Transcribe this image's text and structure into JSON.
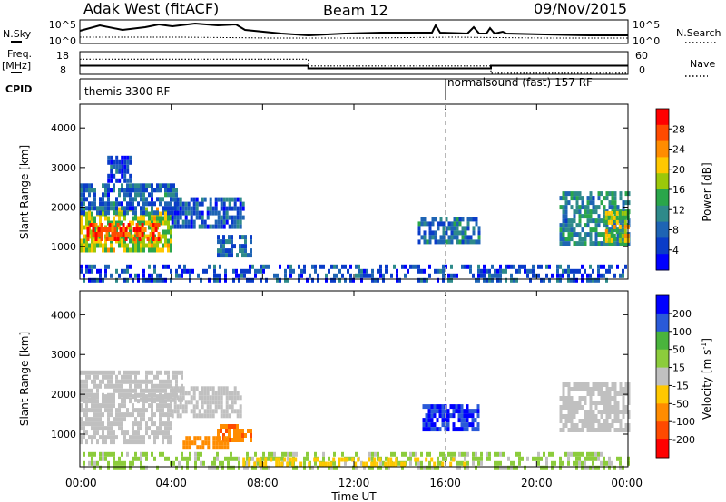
{
  "header": {
    "station": "Adak West (fitACF)",
    "beam": "Beam 12",
    "date": "09/Nov/2015"
  },
  "side_labels": {
    "nsky": "N.Sky",
    "nsearch": "N.Search",
    "freq": "Freq.",
    "freq_unit": "[MHz]",
    "nave": "Nave",
    "cpid": "CPID"
  },
  "top_panels": {
    "noise_ticks_left": [
      "10^5",
      "10^0"
    ],
    "noise_ticks_right": [
      "10^5",
      "10^0"
    ],
    "freq_ticks_left": [
      "18",
      "8"
    ],
    "nave_ticks_right": [
      "60",
      "0"
    ],
    "freq_mhz": [
      {
        "x": 0,
        "v": 11.8
      },
      {
        "x": 10,
        "v": 11.8
      },
      {
        "x": 10,
        "v": 10.6
      },
      {
        "x": 18,
        "v": 10.6
      },
      {
        "x": 18,
        "v": 11.8
      },
      {
        "x": 24,
        "v": 11.8
      }
    ],
    "nave": [
      {
        "x": 0,
        "v": 40
      },
      {
        "x": 10,
        "v": 40
      },
      {
        "x": 10,
        "v": 22
      },
      {
        "x": 18,
        "v": 22
      },
      {
        "x": 18,
        "v": 3
      },
      {
        "x": 24,
        "v": 3
      }
    ],
    "cpid": [
      {
        "label": "themis 3300 RF",
        "start": 0,
        "end": 16
      },
      {
        "label": "normalsound (fast) 157 RF",
        "start": 16,
        "end": 24
      }
    ]
  },
  "chart_data": [
    {
      "type": "heatmap",
      "name": "Power",
      "ylabel": "Slant Range [km]",
      "xlabel": "Time UT",
      "x_unit": "hours UT",
      "xlim": [
        0,
        24
      ],
      "ylim": [
        180,
        4600
      ],
      "yticks": [
        "1000",
        "2000",
        "3000",
        "4000"
      ],
      "colorbar": {
        "label": "Power [dB]",
        "ticks": [
          "28",
          "24",
          "20",
          "16",
          "12",
          "8",
          "4"
        ],
        "colors": [
          "#ff0000",
          "#ff4a00",
          "#ff8c00",
          "#ffc800",
          "#9cc80a",
          "#2aa64a",
          "#2e8a8a",
          "#1e64b4",
          "#0a3cc8",
          "#0000ff"
        ]
      },
      "regions": [
        {
          "t0": 0.0,
          "t1": 4.0,
          "r0": 900,
          "r1": 2000,
          "value": 18
        },
        {
          "t0": 0.3,
          "t1": 3.5,
          "r0": 1150,
          "r1": 1600,
          "value": 28
        },
        {
          "t0": 0.0,
          "t1": 4.2,
          "r0": 1900,
          "r1": 2600,
          "value": 8
        },
        {
          "t0": 1.2,
          "t1": 2.2,
          "r0": 2700,
          "r1": 3300,
          "value": 5
        },
        {
          "t0": 4.0,
          "t1": 7.2,
          "r0": 1450,
          "r1": 2250,
          "value": 7
        },
        {
          "t0": 6.0,
          "t1": 7.5,
          "r0": 800,
          "r1": 1300,
          "value": 8
        },
        {
          "t0": 14.8,
          "t1": 17.5,
          "r0": 1100,
          "r1": 1750,
          "value": 9
        },
        {
          "t0": 21.0,
          "t1": 24.0,
          "r0": 1100,
          "r1": 2400,
          "value": 11
        },
        {
          "t0": 23.0,
          "t1": 24.0,
          "r0": 1200,
          "r1": 1900,
          "value": 18
        },
        {
          "t0": 0.0,
          "t1": 24.0,
          "r0": 200,
          "r1": 550,
          "value": 6
        }
      ]
    },
    {
      "type": "heatmap",
      "name": "Velocity",
      "ylabel": "Slant Range [km]",
      "xlabel": "Time UT",
      "x_unit": "hours UT",
      "xlim": [
        0,
        24
      ],
      "ylim": [
        180,
        4600
      ],
      "yticks": [
        "1000",
        "2000",
        "3000",
        "4000"
      ],
      "xticks": [
        "00:00",
        "04:00",
        "08:00",
        "12:00",
        "16:00",
        "20:00",
        "00:00"
      ],
      "colorbar": {
        "label": "Velocity [m s",
        "label_sup": "-1",
        "label_end": "]",
        "ticks": [
          "200",
          "100",
          "50",
          "15",
          "-15",
          "-50",
          "-100",
          "-200"
        ],
        "colors": [
          "#0000ff",
          "#2a5ad8",
          "#4ab43c",
          "#8ccc3c",
          "#c0c0c0",
          "#ffc800",
          "#ff8c00",
          "#ff4a00",
          "#ff0000"
        ]
      },
      "regions": [
        {
          "t0": 0.0,
          "t1": 4.0,
          "r0": 800,
          "r1": 2000,
          "value": 0
        },
        {
          "t0": 0.0,
          "t1": 4.5,
          "r0": 1900,
          "r1": 2600,
          "value": 5
        },
        {
          "t0": 4.0,
          "t1": 7.0,
          "r0": 1500,
          "r1": 2200,
          "value": -5
        },
        {
          "t0": 6.0,
          "t1": 7.5,
          "r0": 850,
          "r1": 1250,
          "value": -90
        },
        {
          "t0": 4.5,
          "t1": 6.5,
          "r0": 650,
          "r1": 950,
          "value": -70
        },
        {
          "t0": 15.0,
          "t1": 17.5,
          "r0": 1100,
          "r1": 1750,
          "value": 200
        },
        {
          "t0": 21.0,
          "t1": 24.0,
          "r0": 1100,
          "r1": 2300,
          "value": 0
        },
        {
          "t0": 0.0,
          "t1": 24.0,
          "r0": 200,
          "r1": 550,
          "value": 20
        },
        {
          "t0": 7.0,
          "t1": 17.0,
          "r0": 200,
          "r1": 420,
          "value": -40
        }
      ]
    }
  ]
}
